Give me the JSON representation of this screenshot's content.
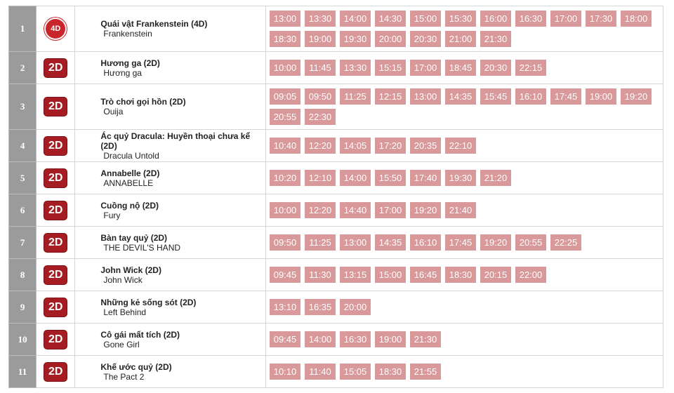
{
  "rows": [
    {
      "no": "1",
      "format": "4D",
      "title": "Quái vật Frankenstein (4D)",
      "subtitle": "Frankenstein",
      "times": [
        "13:00",
        "13:30",
        "14:00",
        "14:30",
        "15:00",
        "15:30",
        "16:00",
        "16:30",
        "17:00",
        "17:30",
        "18:00",
        "18:30",
        "19:00",
        "19:30",
        "20:00",
        "20:30",
        "21:00",
        "21:30"
      ]
    },
    {
      "no": "2",
      "format": "2D",
      "title": "Hương ga (2D)",
      "subtitle": "Hương ga",
      "times": [
        "10:00",
        "11:45",
        "13:30",
        "15:15",
        "17:00",
        "18:45",
        "20:30",
        "22:15"
      ]
    },
    {
      "no": "3",
      "format": "2D",
      "title": "Trò chơi gọi hồn (2D)",
      "subtitle": "Ouija",
      "times": [
        "09:05",
        "09:50",
        "11:25",
        "12:15",
        "13:00",
        "14:35",
        "15:45",
        "16:10",
        "17:45",
        "19:00",
        "19:20",
        "20:55",
        "22:30"
      ]
    },
    {
      "no": "4",
      "format": "2D",
      "title": "Ác quỷ Dracula: Huyền thoại chưa kể (2D)",
      "subtitle": "Dracula Untold",
      "times": [
        "10:40",
        "12:20",
        "14:05",
        "17:20",
        "20:35",
        "22:10"
      ]
    },
    {
      "no": "5",
      "format": "2D",
      "title": "Annabelle (2D)",
      "subtitle": "ANNABELLE",
      "times": [
        "10:20",
        "12:10",
        "14:00",
        "15:50",
        "17:40",
        "19:30",
        "21:20"
      ]
    },
    {
      "no": "6",
      "format": "2D",
      "title": "Cuồng nộ (2D)",
      "subtitle": "Fury",
      "times": [
        "10:00",
        "12:20",
        "14:40",
        "17:00",
        "19:20",
        "21:40"
      ]
    },
    {
      "no": "7",
      "format": "2D",
      "title": "Bàn tay quỷ (2D)",
      "subtitle": "THE DEVIL'S HAND",
      "times": [
        "09:50",
        "11:25",
        "13:00",
        "14:35",
        "16:10",
        "17:45",
        "19:20",
        "20:55",
        "22:25"
      ]
    },
    {
      "no": "8",
      "format": "2D",
      "title": "John Wick (2D)",
      "subtitle": "John Wick",
      "times": [
        "09:45",
        "11:30",
        "13:15",
        "15:00",
        "16:45",
        "18:30",
        "20:15",
        "22:00"
      ]
    },
    {
      "no": "9",
      "format": "2D",
      "title": "Những kẻ sống sót (2D)",
      "subtitle": "Left Behind",
      "times": [
        "13:10",
        "16:35",
        "20:00"
      ]
    },
    {
      "no": "10",
      "format": "2D",
      "title": "Cô gái mất tích (2D)",
      "subtitle": "Gone Girl",
      "times": [
        "09:45",
        "14:00",
        "16:30",
        "19:00",
        "21:30"
      ]
    },
    {
      "no": "11",
      "format": "2D",
      "title": "Khế ước quỷ (2D)",
      "subtitle": "The Pact 2",
      "times": [
        "10:10",
        "11:40",
        "15:05",
        "18:30",
        "21:55"
      ]
    }
  ]
}
